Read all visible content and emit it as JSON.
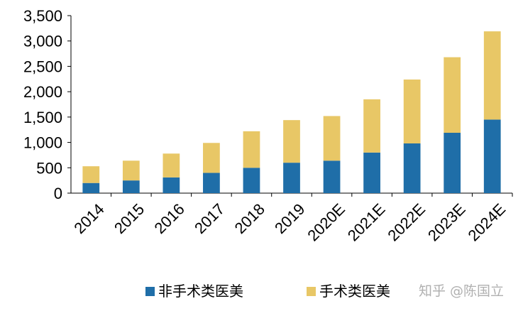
{
  "chart_data": {
    "type": "bar",
    "stacked": true,
    "categories": [
      "2014",
      "2015",
      "2016",
      "2017",
      "2018",
      "2019",
      "2020E",
      "2021E",
      "2022E",
      "2023E",
      "2024E"
    ],
    "series": [
      {
        "name": "非手术类医美",
        "color": "#1f6ea8",
        "values": [
          200,
          250,
          310,
          400,
          500,
          600,
          640,
          800,
          980,
          1190,
          1450
        ]
      },
      {
        "name": "手术类医美",
        "color": "#e8c766",
        "values": [
          330,
          390,
          470,
          590,
          720,
          840,
          880,
          1050,
          1260,
          1490,
          1740
        ]
      }
    ],
    "ylim": [
      0,
      3500
    ],
    "yticks": [
      "0",
      "500",
      "1,000",
      "1,500",
      "2,000",
      "2,500",
      "3,000",
      "3,500"
    ],
    "ytick_values": [
      0,
      500,
      1000,
      1500,
      2000,
      2500,
      3000,
      3500
    ],
    "legend_position": "bottom",
    "grid": false
  },
  "watermark": "知乎 @陈国立"
}
